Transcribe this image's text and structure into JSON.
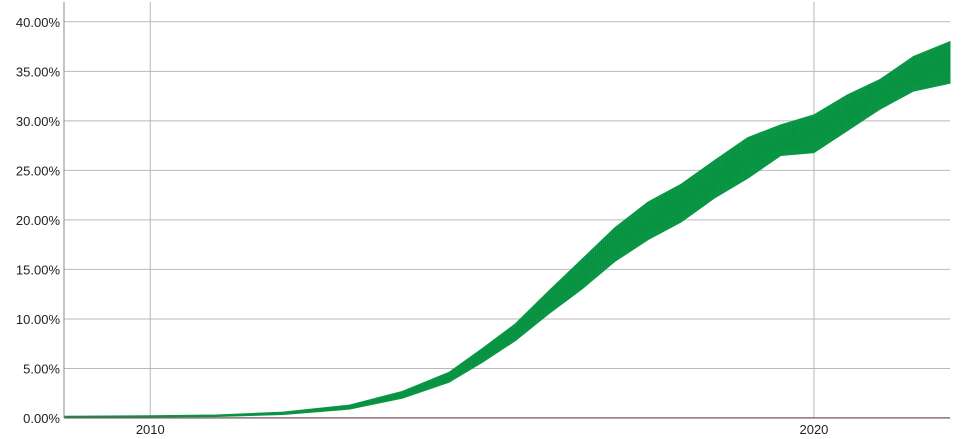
{
  "chart_data": {
    "type": "area",
    "title": "",
    "xlabel": "",
    "ylabel": "",
    "x_ticks": [
      "2010",
      "2020"
    ],
    "y_ticks": [
      "0.00%",
      "5.00%",
      "10.00%",
      "15.00%",
      "20.00%",
      "25.00%",
      "30.00%",
      "35.00%",
      "40.00%"
    ],
    "ylim": [
      0,
      42
    ],
    "xlim": [
      2008.7,
      2022.05
    ],
    "grid": true,
    "colors": {
      "main": "#0a9a47",
      "secondary": "#d95c4f",
      "grid": "#b9b9b9"
    },
    "series": [
      {
        "fill_low": [
          [
            2008.7,
            0.08
          ],
          [
            2010.0,
            0.1
          ],
          [
            2011.0,
            0.15
          ],
          [
            2012.0,
            0.35
          ],
          [
            2013.0,
            0.9
          ],
          [
            2013.8,
            2.0
          ],
          [
            2014.5,
            3.6
          ],
          [
            2015.0,
            5.6
          ],
          [
            2015.5,
            7.8
          ],
          [
            2016.0,
            10.5
          ],
          [
            2016.5,
            13.0
          ],
          [
            2017.0,
            15.8
          ],
          [
            2017.5,
            18.0
          ],
          [
            2018.0,
            19.8
          ],
          [
            2018.5,
            22.2
          ],
          [
            2019.0,
            24.2
          ],
          [
            2019.5,
            26.5
          ],
          [
            2020.0,
            26.8
          ],
          [
            2020.5,
            29.0
          ],
          [
            2021.0,
            31.2
          ],
          [
            2021.5,
            33.0
          ],
          [
            2022.05,
            33.8
          ]
        ],
        "fill_high": [
          [
            2008.7,
            0.18
          ],
          [
            2010.0,
            0.22
          ],
          [
            2011.0,
            0.3
          ],
          [
            2012.0,
            0.6
          ],
          [
            2013.0,
            1.3
          ],
          [
            2013.8,
            2.7
          ],
          [
            2014.5,
            4.6
          ],
          [
            2015.0,
            7.0
          ],
          [
            2015.5,
            9.5
          ],
          [
            2016.0,
            12.8
          ],
          [
            2016.5,
            16.0
          ],
          [
            2017.0,
            19.2
          ],
          [
            2017.5,
            21.8
          ],
          [
            2018.0,
            23.6
          ],
          [
            2018.5,
            26.0
          ],
          [
            2019.0,
            28.3
          ],
          [
            2019.5,
            29.6
          ],
          [
            2020.0,
            30.6
          ],
          [
            2020.5,
            32.6
          ],
          [
            2021.0,
            34.2
          ],
          [
            2021.5,
            36.5
          ],
          [
            2022.05,
            38.0
          ]
        ]
      },
      {
        "values": [
          [
            2008.7,
            0.02
          ],
          [
            2022.05,
            0.02
          ]
        ]
      }
    ]
  }
}
